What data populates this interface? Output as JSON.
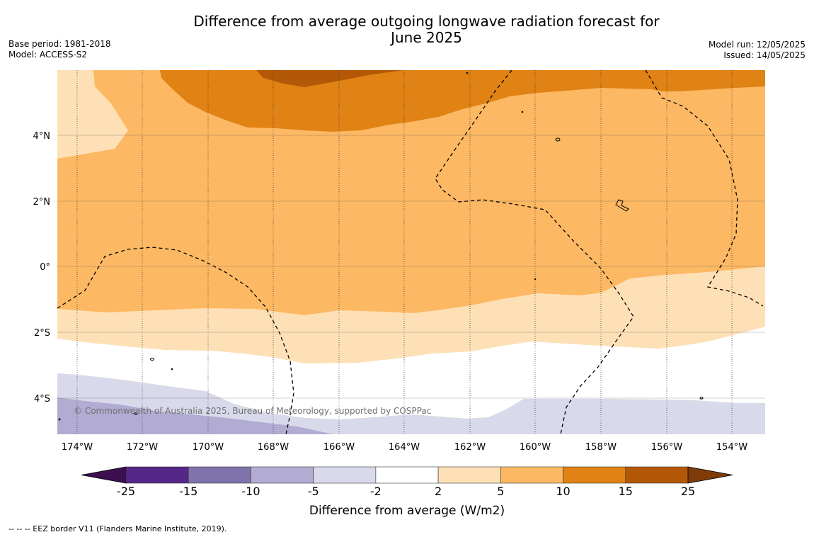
{
  "title_line1": "Difference from average outgoing longwave radiation forecast for",
  "title_line2": "June 2025",
  "base_period": "Base period: 1981-2018",
  "model": "Model: ACCESS-S2",
  "model_run": "Model run: 12/05/2025",
  "issued": "Issued: 14/05/2025",
  "copyright": "© Commonwealth of Australia 2025, Bureau of Meteorology, supported by COSPPac",
  "footnote": "--  --  -- EEZ border V11 (Flanders Marine Institute, 2019).",
  "lon_labels": [
    "174°W",
    "172°W",
    "170°W",
    "168°W",
    "166°W",
    "164°W",
    "162°W",
    "160°W",
    "158°W",
    "156°W",
    "154°W"
  ],
  "lat_labels": [
    "4°N",
    "2°N",
    "0°",
    "2°S",
    "4°S"
  ],
  "colorbar": {
    "title": "Difference from average (W/m2)",
    "ticks": [
      "-25",
      "-15",
      "-10",
      "-5",
      "-2",
      "2",
      "5",
      "10",
      "15",
      "25"
    ],
    "colors": [
      "#3b0f50",
      "#542788",
      "#8073ac",
      "#b2abd2",
      "#d8daeb",
      "#ffffff",
      "#fee0b6",
      "#fdb863",
      "#e08214",
      "#b35806",
      "#7f3b08"
    ]
  }
}
